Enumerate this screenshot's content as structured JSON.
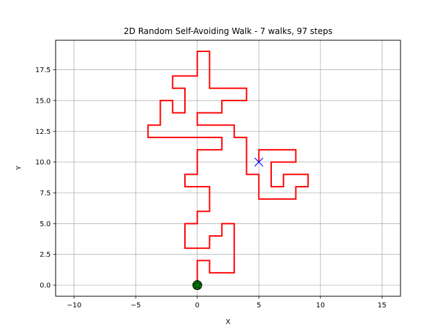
{
  "chart_data": {
    "type": "line",
    "title": "2D Random Self-Avoiding Walk - 7 walks, 97 steps",
    "xlabel": "X",
    "ylabel": "Y",
    "xlim": [
      -11.5,
      16.5
    ],
    "ylim": [
      -0.9,
      19.9
    ],
    "xticks": [
      -10,
      -5,
      0,
      5,
      10,
      15
    ],
    "yticks": [
      0.0,
      2.5,
      5.0,
      7.5,
      10.0,
      12.5,
      15.0,
      17.5
    ],
    "xtick_labels": [
      "−10",
      "−5",
      "0",
      "5",
      "10",
      "15"
    ],
    "ytick_labels": [
      "0.0",
      "2.5",
      "5.0",
      "7.5",
      "10.0",
      "12.5",
      "15.0",
      "17.5"
    ],
    "grid": true,
    "colors": {
      "path": "#ff0000",
      "start": "#008000",
      "end": "#0000ff",
      "grid": "#b0b0b0"
    },
    "series": [
      {
        "points": [
          [
            0,
            0
          ],
          [
            0,
            2
          ],
          [
            1,
            2
          ],
          [
            1,
            1
          ],
          [
            3,
            1
          ],
          [
            3,
            5
          ],
          [
            2,
            5
          ],
          [
            2,
            4
          ],
          [
            1,
            4
          ],
          [
            1,
            3
          ],
          [
            -1,
            3
          ],
          [
            -1,
            5
          ],
          [
            0,
            5
          ],
          [
            0,
            6
          ],
          [
            1,
            6
          ],
          [
            1,
            8
          ],
          [
            -1,
            8
          ],
          [
            -1,
            9
          ],
          [
            0,
            9
          ],
          [
            0,
            11
          ],
          [
            2,
            11
          ],
          [
            2,
            12
          ],
          [
            -4,
            12
          ],
          [
            -4,
            13
          ],
          [
            -3,
            13
          ],
          [
            -3,
            15
          ],
          [
            -2,
            15
          ],
          [
            -2,
            14
          ],
          [
            -1,
            14
          ],
          [
            -1,
            16
          ],
          [
            -2,
            16
          ],
          [
            -2,
            17
          ],
          [
            0,
            17
          ],
          [
            0,
            19
          ],
          [
            1,
            19
          ],
          [
            1,
            16
          ],
          [
            4,
            16
          ],
          [
            4,
            15
          ],
          [
            2,
            15
          ],
          [
            2,
            14
          ],
          [
            0,
            14
          ],
          [
            0,
            13
          ],
          [
            3,
            13
          ],
          [
            3,
            12
          ],
          [
            4,
            12
          ],
          [
            4,
            9
          ],
          [
            5,
            9
          ],
          [
            5,
            7
          ],
          [
            8,
            7
          ],
          [
            8,
            8
          ],
          [
            9,
            8
          ],
          [
            9,
            9
          ],
          [
            7,
            9
          ],
          [
            7,
            8
          ],
          [
            6,
            8
          ],
          [
            6,
            10
          ],
          [
            8,
            10
          ],
          [
            8,
            11
          ],
          [
            5,
            11
          ],
          [
            5,
            10
          ]
        ]
      }
    ],
    "start_point": [
      0,
      0
    ],
    "end_point": [
      5,
      10
    ],
    "start_marker": "circle-star",
    "end_marker": "x"
  }
}
